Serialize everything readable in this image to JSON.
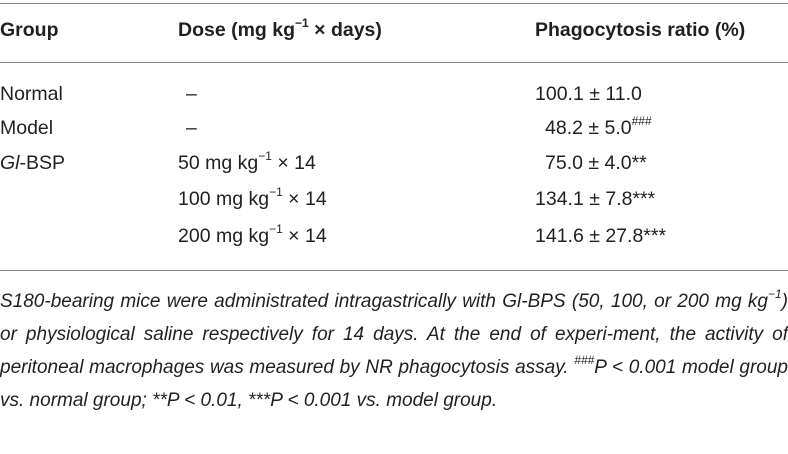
{
  "table": {
    "headers": {
      "group": "Group",
      "dose_prefix": "Dose (mg kg",
      "dose_sup": "−1",
      "dose_suffix": " × days)",
      "ratio": "Phagocytosis ratio (%)"
    },
    "rows": [
      {
        "group_italic": "",
        "group": "Normal",
        "dose_prefix": "–",
        "dose_sup": "",
        "dose_suffix": "",
        "ratio": "100.1 ± 11.0",
        "ratio_sup": ""
      },
      {
        "group_italic": "",
        "group": "Model",
        "dose_prefix": "–",
        "dose_sup": "",
        "dose_suffix": "",
        "ratio": "48.2 ± 5.0",
        "ratio_sup": "###"
      },
      {
        "group_italic": "Gl",
        "group": "-BSP",
        "dose_prefix": "50 mg kg",
        "dose_sup": "−1",
        "dose_suffix": " × 14",
        "ratio": "75.0 ± 4.0**",
        "ratio_sup": ""
      },
      {
        "group_italic": "",
        "group": "",
        "dose_prefix": "100 mg kg",
        "dose_sup": "−1",
        "dose_suffix": " × 14",
        "ratio": "134.1 ± 7.8***",
        "ratio_sup": ""
      },
      {
        "group_italic": "",
        "group": "",
        "dose_prefix": "200 mg kg",
        "dose_sup": "−1",
        "dose_suffix": " × 14",
        "ratio": "141.6 ± 27.8***",
        "ratio_sup": ""
      }
    ]
  },
  "footnote": {
    "part1": "S180-bearing mice were administrated intragastrically with Gl-BPS (50, 100, or 200 mg kg",
    "part1_sup": "−1",
    "part2": ") or physiological saline respectively for 14 days. At the end of experi-ment, the activity of peritoneal macrophages was measured by NR phagocytosis assay. ",
    "hash_sup": "###",
    "part3": "P < 0.001 model group vs. normal group; **P < 0.01, ***P < 0.001 vs. model group."
  }
}
